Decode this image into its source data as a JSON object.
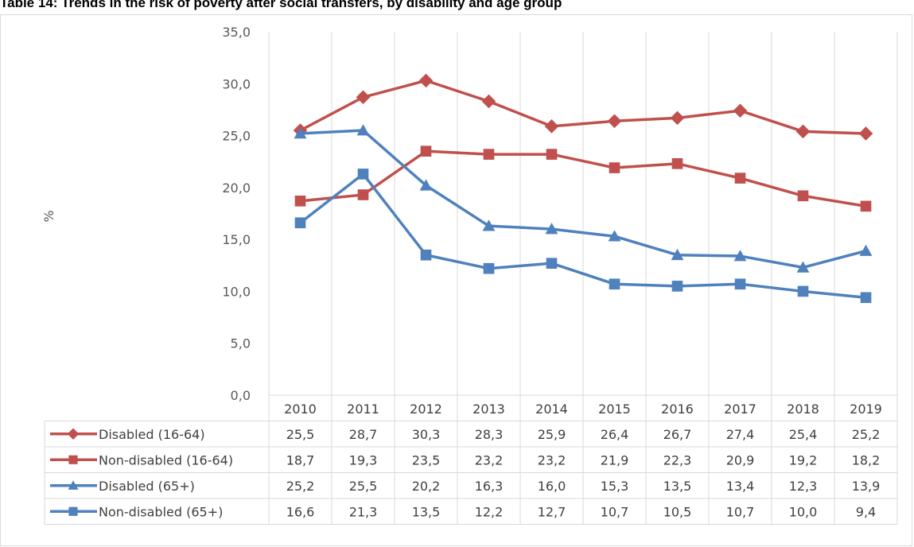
{
  "title": "Table 14: Trends in the risk of poverty after social transfers, by disability and age group",
  "chart_data": {
    "type": "line",
    "title": "Table 14: Trends in the risk of poverty after social transfers, by disability and age group",
    "xlabel": "",
    "ylabel": "%",
    "ylim": [
      0,
      35
    ],
    "yticks": [
      "0,0",
      "5,0",
      "10,0",
      "15,0",
      "20,0",
      "25,0",
      "30,0",
      "35,0"
    ],
    "grid": "vertical",
    "legend": "data-table",
    "categories": [
      "2010",
      "2011",
      "2012",
      "2013",
      "2014",
      "2015",
      "2016",
      "2017",
      "2018",
      "2019"
    ],
    "series": [
      {
        "name": "Disabled (16-64)",
        "color": "#c0504d",
        "marker": "diamond",
        "values": [
          25.5,
          28.7,
          30.3,
          28.3,
          25.9,
          26.4,
          26.7,
          27.4,
          25.4,
          25.2
        ],
        "labels": [
          "25,5",
          "28,7",
          "30,3",
          "28,3",
          "25,9",
          "26,4",
          "26,7",
          "27,4",
          "25,4",
          "25,2"
        ]
      },
      {
        "name": "Non-disabled (16-64)",
        "color": "#c0504d",
        "marker": "square",
        "values": [
          18.7,
          19.3,
          23.5,
          23.2,
          23.2,
          21.9,
          22.3,
          20.9,
          19.2,
          18.2
        ],
        "labels": [
          "18,7",
          "19,3",
          "23,5",
          "23,2",
          "23,2",
          "21,9",
          "22,3",
          "20,9",
          "19,2",
          "18,2"
        ]
      },
      {
        "name": "Disabled (65+)",
        "color": "#4f81bd",
        "marker": "triangle",
        "values": [
          25.2,
          25.5,
          20.2,
          16.3,
          16.0,
          15.3,
          13.5,
          13.4,
          12.3,
          13.9
        ],
        "labels": [
          "25,2",
          "25,5",
          "20,2",
          "16,3",
          "16,0",
          "15,3",
          "13,5",
          "13,4",
          "12,3",
          "13,9"
        ]
      },
      {
        "name": "Non-disabled (65+)",
        "color": "#4f81bd",
        "marker": "square",
        "values": [
          16.6,
          21.3,
          13.5,
          12.2,
          12.7,
          10.7,
          10.5,
          10.7,
          10.0,
          9.4
        ],
        "labels": [
          "16,6",
          "21,3",
          "13,5",
          "12,2",
          "12,7",
          "10,7",
          "10,5",
          "10,7",
          "10,0",
          "9,4"
        ]
      }
    ]
  }
}
